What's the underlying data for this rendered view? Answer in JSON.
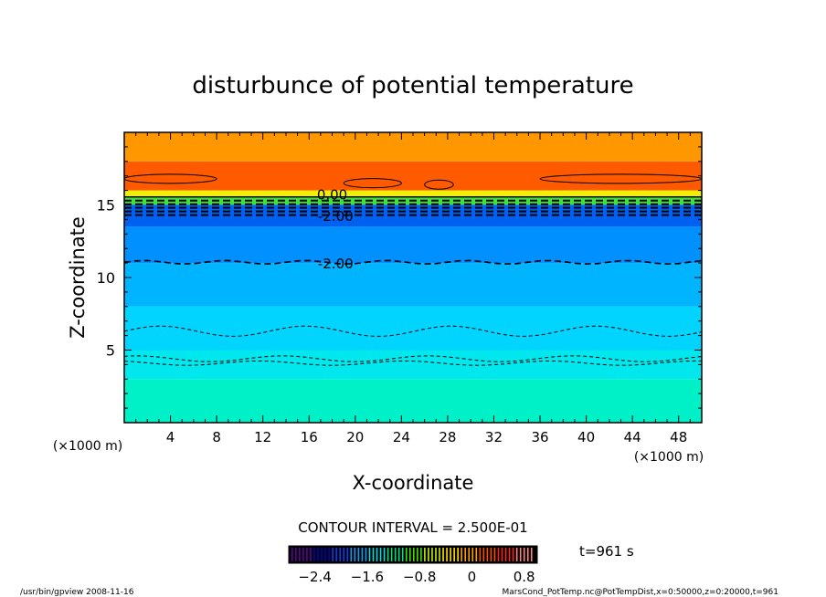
{
  "chart_data": {
    "type": "heatmap",
    "subtype": "filled contour",
    "title": "disturbunce of potential temperature",
    "xlabel": "X-coordinate",
    "ylabel": "Z-coordinate",
    "x_unit": "(×1000 m)",
    "y_unit": "(×1000 m)",
    "xlim": [
      0,
      50
    ],
    "ylim": [
      0,
      20
    ],
    "xticks": [
      4,
      8,
      12,
      16,
      20,
      24,
      28,
      32,
      36,
      40,
      44,
      48
    ],
    "yticks": [
      5,
      10,
      15
    ],
    "color_levels": [
      {
        "z": [
          0,
          3
        ],
        "value": -0.9,
        "color": "#00f0c8"
      },
      {
        "z": [
          3,
          5
        ],
        "value": -1.1,
        "color": "#00e8ee"
      },
      {
        "z": [
          5,
          8
        ],
        "value": -1.4,
        "color": "#00d4ff"
      },
      {
        "z": [
          8,
          11
        ],
        "value": -1.8,
        "color": "#00b4ff"
      },
      {
        "z": [
          11,
          13.5
        ],
        "value": -2.1,
        "color": "#0090ff"
      },
      {
        "z": [
          13.5,
          15
        ],
        "value": -2.4,
        "color": "#0060f0"
      },
      {
        "z": [
          15,
          15.5
        ],
        "value": -1.0,
        "color": "#40e040"
      },
      {
        "z": [
          15.5,
          16
        ],
        "value": 0.0,
        "color": "#f0f000"
      },
      {
        "z": [
          16,
          18
        ],
        "value": 0.6,
        "color": "#ff5a00"
      },
      {
        "z": [
          18,
          20
        ],
        "value": 0.3,
        "color": "#ff9800"
      }
    ],
    "contour_labels": [
      "0.00",
      "-2.00",
      "-2.00"
    ],
    "contour_interval_text": "CONTOUR INTERVAL = 2.500E-01",
    "colorbar": {
      "range": [
        -2.8,
        1.0
      ],
      "ticks": [
        "-2.4",
        "-1.6",
        "-0.8",
        "0",
        "0.8"
      ],
      "colors": [
        "#6000a0",
        "#0000c0",
        "#0040ff",
        "#00a0ff",
        "#00e0e0",
        "#00e080",
        "#40e000",
        "#c0f000",
        "#ffe000",
        "#ffa000",
        "#ff5000",
        "#ff2020",
        "#ff8080"
      ]
    },
    "time_label": "t=961 s"
  },
  "footer": {
    "left": "/usr/bin/gpview   2008-11-16",
    "right": "MarsCond_PotTemp.nc@PotTempDist,x=0:50000,z=0:20000,t=961"
  }
}
